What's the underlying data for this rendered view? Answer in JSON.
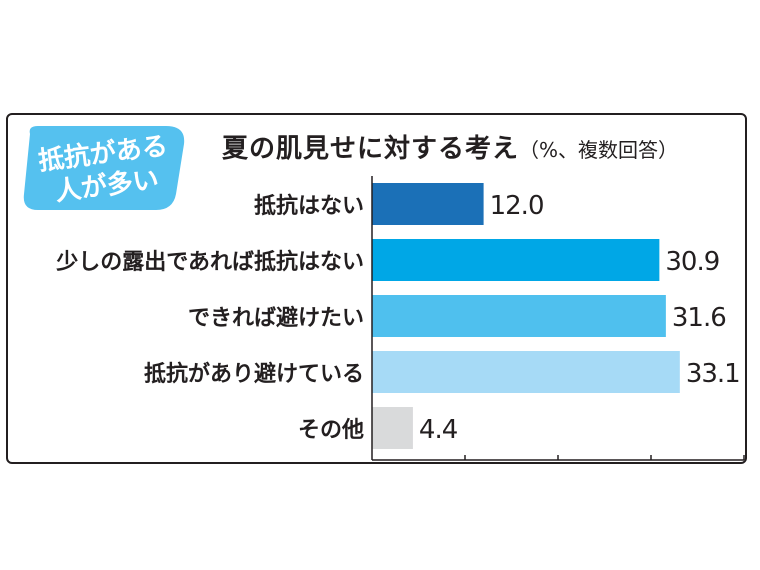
{
  "badge": {
    "line1": "抵抗がある",
    "line2": "人が多い"
  },
  "header": {
    "title": "夏の肌見せに対する考え",
    "note": "（%、複数回答）"
  },
  "chart_data": {
    "type": "bar",
    "orientation": "horizontal",
    "title": "夏の肌見せに対する考え",
    "unit_note": "（%、複数回答）",
    "categories": [
      "抵抗はない",
      "少しの露出であれば抵抗はない",
      "できれば避けたい",
      "抵抗があり避けている",
      "その他"
    ],
    "values": [
      12.0,
      30.9,
      31.6,
      33.1,
      4.4
    ],
    "labels": [
      "12.0",
      "30.9",
      "31.6",
      "33.1",
      "4.4"
    ],
    "colors": [
      "#1b70b7",
      "#00a7e6",
      "#4fc0ee",
      "#a6daf6",
      "#d9dadb"
    ],
    "xlim": [
      0,
      40
    ],
    "grid": false
  }
}
